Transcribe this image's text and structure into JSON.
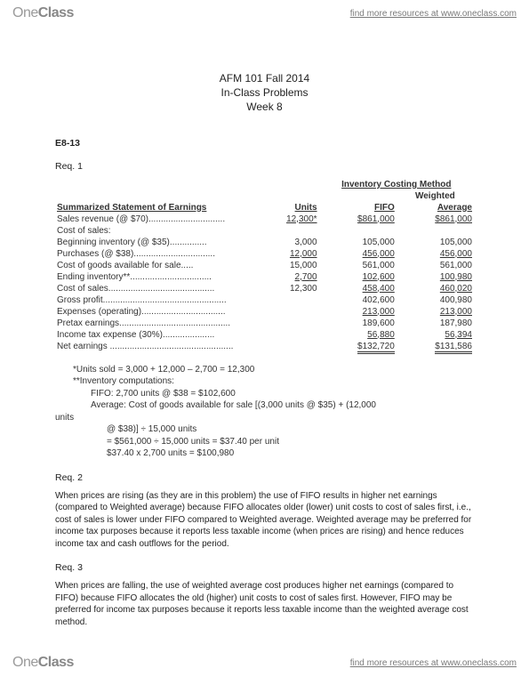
{
  "brand": {
    "part1": "One",
    "part2": "Class",
    "resource_text": "find more resources at www.oneclass.com"
  },
  "title": {
    "line1": "AFM 101 Fall 2014",
    "line2": "In-Class Problems",
    "line3": "Week 8"
  },
  "section": "E8-13",
  "req1_label": "Req. 1",
  "headers": {
    "stmt": "Summarized Statement of Earnings",
    "units": "Units",
    "fifo": "FIFO",
    "method": "Inventory Costing Method",
    "weighted": "Weighted",
    "average": "Average"
  },
  "rows": {
    "sales": {
      "label": "Sales revenue (@ $70)...............................",
      "units": "12,300*",
      "fifo": "$861,000",
      "avg": "$861,000"
    },
    "cos_hdr": {
      "label": "Cost of sales:"
    },
    "beg_inv": {
      "label": "Beginning inventory (@ $35)...............",
      "units": "3,000",
      "fifo": "105,000",
      "avg": "105,000"
    },
    "purch": {
      "label": "Purchases (@ $38).................................",
      "units": "12,000",
      "fifo": "456,000",
      "avg": "456,000"
    },
    "cogas": {
      "label": "Cost of goods available for sale.....",
      "units": "15,000",
      "fifo": "561,000",
      "avg": "561,000"
    },
    "end_inv": {
      "label": "Ending inventory**.................................",
      "units": "2,700",
      "fifo": "102,600",
      "avg": "100,980"
    },
    "cos": {
      "label": "Cost of sales...........................................",
      "units": "12,300",
      "fifo": "458,400",
      "avg": "460,020"
    },
    "gp": {
      "label": "Gross profit..................................................",
      "fifo": "402,600",
      "avg": "400,980"
    },
    "exp": {
      "label": "Expenses (operating)..................................",
      "fifo": "213,000",
      "avg": "213,000"
    },
    "pretax": {
      "label": "Pretax earnings.............................................",
      "fifo": "189,600",
      "avg": "187,980"
    },
    "tax": {
      "label": "Income tax expense (30%).....................",
      "fifo": "56,880",
      "avg": "56,394"
    },
    "net": {
      "label": "Net earnings ..................................................",
      "fifo": "$132,720",
      "avg": "$131,586"
    }
  },
  "notes": {
    "n1": "*Units sold = 3,000 + 12,000 – 2,700 = 12,300",
    "n2": "**Inventory computations:",
    "n3": "FIFO:      2,700 units @ $38 = $102,600",
    "n4": "Average:   Cost of goods available for sale [(3,000 units @ $35) + (12,000",
    "n5": "units",
    "n6": "@ $38)] ÷ 15,000 units",
    "n7": "= $561,000 ÷ 15,000 units = $37.40 per unit",
    "n8": "$37.40 x 2,700 units = $100,980"
  },
  "req2_label": "Req. 2",
  "req2_text": "When prices are rising (as they are in this problem) the use of FIFO results in higher net earnings (compared to Weighted average) because FIFO allocates older (lower) unit costs to cost of sales first, i.e., cost of sales is lower under FIFO compared to Weighted average. Weighted average may be preferred for income tax purposes because it reports less taxable income (when prices are rising) and hence reduces income tax and cash outflows for the period.",
  "req3_label": "Req. 3",
  "req3_text": "When prices are falling, the use of weighted average cost produces higher net earnings (compared to FIFO) because FIFO allocates the old (higher) unit costs to cost of sales first. However, FIFO may be preferred for income tax purposes because it reports less taxable income than the weighted average cost method."
}
